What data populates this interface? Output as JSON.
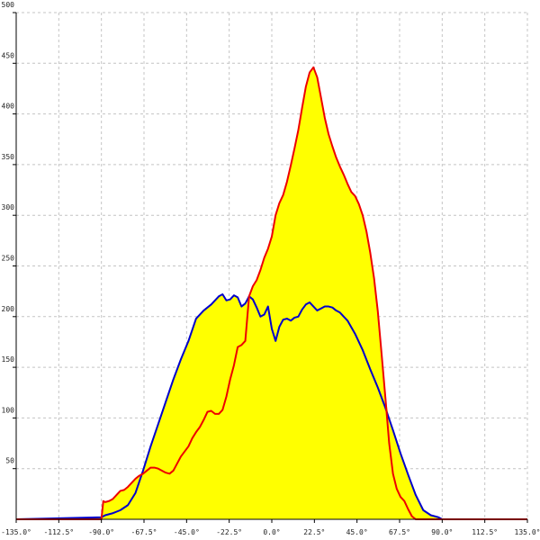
{
  "chart_data": {
    "type": "area",
    "title": "",
    "xlabel": "",
    "ylabel": "",
    "xlim": [
      -135,
      135
    ],
    "ylim": [
      0,
      500
    ],
    "grid": true,
    "fill_color": "#ffff00",
    "x_ticks": [
      -135,
      -112.5,
      -90,
      -67.5,
      -45,
      -22.5,
      0,
      22.5,
      45,
      67.5,
      90,
      112.5,
      135
    ],
    "x_tick_labels": [
      "-135.0°",
      "-112.5°",
      "-90.0°",
      "-67.5°",
      "-45.0°",
      "-22.5°",
      "0.0°",
      "22.5°",
      "45.0°",
      "67.5°",
      "90.0°",
      "112.5°",
      "135.0°"
    ],
    "y_ticks": [
      50,
      100,
      150,
      200,
      250,
      300,
      350,
      400,
      450,
      500
    ],
    "y_tick_labels": [
      "50",
      "100",
      "150",
      "200",
      "250",
      "300",
      "350",
      "400",
      "450",
      "500"
    ],
    "series": [
      {
        "color": "#0000cc",
        "x": [
          -135,
          -90,
          -88,
          -84,
          -80,
          -76,
          -72,
          -68,
          -64,
          -60,
          -56,
          -52,
          -48,
          -44,
          -40,
          -36,
          -32,
          -28,
          -26,
          -24,
          -22,
          -20,
          -18,
          -16,
          -14,
          -12,
          -10,
          -8,
          -6,
          -4,
          -2,
          0,
          2,
          4,
          6,
          8,
          10,
          12,
          14,
          16,
          18,
          20,
          22,
          24,
          26,
          28,
          30,
          32,
          34,
          36,
          40,
          44,
          48,
          52,
          56,
          60,
          64,
          68,
          72,
          76,
          80,
          84,
          86,
          88,
          90,
          135
        ],
        "y": [
          0,
          2,
          4,
          6,
          9,
          14,
          26,
          48,
          72,
          94,
          116,
          138,
          158,
          176,
          198,
          206,
          212,
          220,
          222,
          216,
          217,
          221,
          219,
          210,
          213,
          220,
          217,
          209,
          200,
          202,
          210,
          188,
          176,
          190,
          197,
          198,
          196,
          199,
          200,
          207,
          212,
          214,
          210,
          206,
          208,
          210,
          210,
          209,
          206,
          204,
          196,
          183,
          167,
          148,
          130,
          110,
          88,
          65,
          44,
          24,
          9,
          4,
          3,
          2,
          0,
          0
        ]
      },
      {
        "color": "#ee0000",
        "x": [
          -135,
          -90,
          -89,
          -88,
          -86,
          -84,
          -82,
          -80,
          -78,
          -76,
          -74,
          -72,
          -70,
          -68,
          -66,
          -64,
          -62,
          -60,
          -58,
          -56,
          -54,
          -52,
          -50,
          -48,
          -46,
          -44,
          -42,
          -40,
          -38,
          -36,
          -34,
          -32,
          -30,
          -28,
          -26,
          -24,
          -22,
          -20,
          -18,
          -16,
          -14,
          -12,
          -10,
          -8,
          -6,
          -4,
          -2,
          0,
          2,
          4,
          6,
          8,
          10,
          12,
          14,
          16,
          18,
          20,
          22,
          24,
          26,
          28,
          30,
          32,
          34,
          36,
          38,
          40,
          42,
          44,
          46,
          48,
          50,
          52,
          54,
          56,
          58,
          60,
          62,
          64,
          66,
          68,
          70,
          72,
          74,
          76,
          78,
          80,
          82,
          84,
          86,
          88,
          90,
          135
        ],
        "y": [
          0,
          0,
          18,
          17,
          18,
          20,
          24,
          28,
          29,
          32,
          36,
          40,
          43,
          45,
          48,
          51,
          51,
          50,
          48,
          46,
          45,
          48,
          55,
          62,
          67,
          72,
          80,
          86,
          91,
          98,
          106,
          107,
          104,
          104,
          108,
          121,
          138,
          152,
          170,
          172,
          176,
          220,
          230,
          236,
          246,
          258,
          267,
          279,
          300,
          312,
          320,
          333,
          349,
          366,
          384,
          406,
          427,
          441,
          446,
          436,
          416,
          396,
          380,
          368,
          357,
          348,
          340,
          331,
          323,
          319,
          311,
          300,
          284,
          263,
          238,
          205,
          163,
          120,
          75,
          45,
          30,
          22,
          18,
          10,
          3,
          0,
          0,
          0,
          0,
          0,
          0,
          0,
          0,
          0
        ]
      }
    ]
  }
}
